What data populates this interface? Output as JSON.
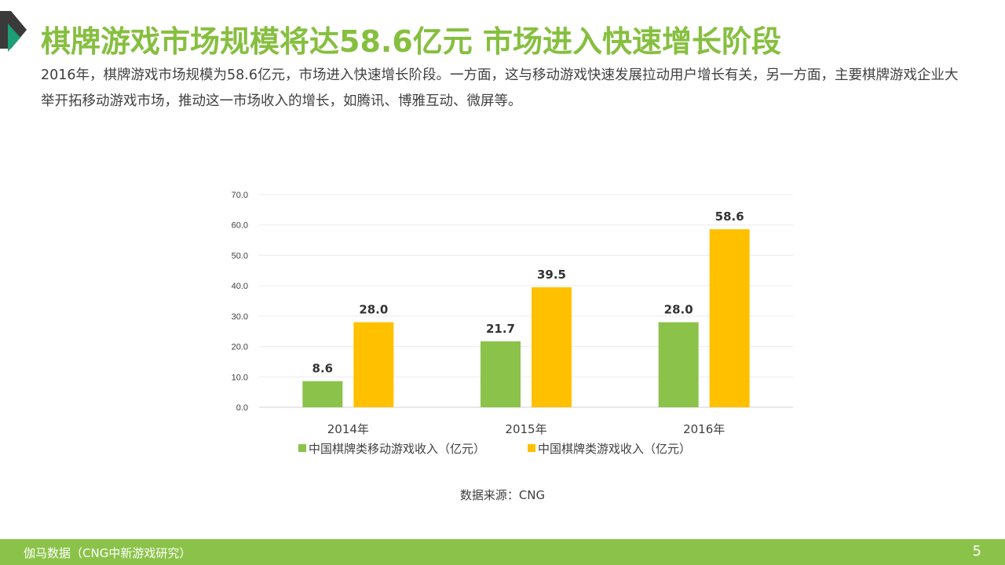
{
  "header": {
    "title": "棋牌游戏市场规模将达58.6亿元 市场进入快速增长阶段",
    "description": "2016年，棋牌游戏市场规模为58.6亿元，市场进入快速增长阶段。一方面，这与移动游戏快速发展拉动用户增长有关，另一方面，主要棋牌游戏企业大举开拓移动游戏市场，推动这一市场收入的增长，如腾讯、博雅互动、微屏等。"
  },
  "colors": {
    "accent": "#8bc34a",
    "series1": "#8bc34a",
    "series2": "#ffc000"
  },
  "chart_data": {
    "type": "bar",
    "categories": [
      "2014年",
      "2015年",
      "2016年"
    ],
    "series": [
      {
        "name": "中国棋牌类移动游戏收入（亿元）",
        "values": [
          8.6,
          21.7,
          28.0
        ],
        "color": "#8bc34a",
        "labels": [
          "8.6",
          "21.7",
          "28.0"
        ]
      },
      {
        "name": "中国棋牌类游戏收入（亿元）",
        "values": [
          28.0,
          39.5,
          58.6
        ],
        "color": "#ffc000",
        "labels": [
          "28.0",
          "39.5",
          "58.6"
        ]
      }
    ],
    "yticks": [
      "0.0",
      "10.0",
      "20.0",
      "30.0",
      "40.0",
      "50.0",
      "60.0",
      "70.0"
    ],
    "ylim": [
      0,
      70
    ],
    "grid": true,
    "legend": "bottom"
  },
  "source": "数据来源：CNG",
  "footer": {
    "text": "伽马数据（CNG中新游戏研究）",
    "page": "5"
  }
}
